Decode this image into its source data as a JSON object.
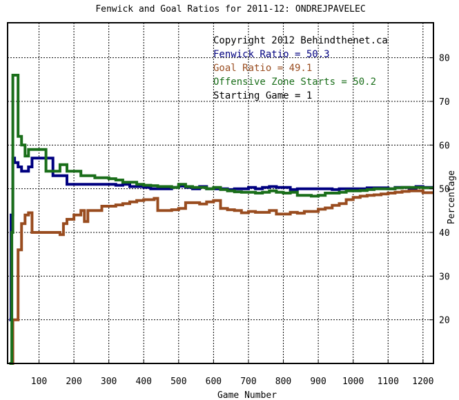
{
  "chart_data": {
    "type": "line",
    "title": "Fenwick and Goal Ratios for 2011-12: ONDREJPAVELEC",
    "xlabel": "Game Number",
    "ylabel": "Percentage",
    "xlim": [
      10,
      1230
    ],
    "ylim": [
      10,
      88
    ],
    "x_ticks": [
      100,
      200,
      300,
      400,
      500,
      600,
      700,
      800,
      900,
      1000,
      1100,
      1200
    ],
    "y_ticks": [
      20,
      30,
      40,
      50,
      60,
      70,
      80
    ],
    "grid": true,
    "legend_position": "top-right",
    "annotations": [
      {
        "text": "Copyright 2012 Behindthenet.ca",
        "color": "#000000"
      },
      {
        "text": "Fenwick Ratio = 50.3",
        "color": "#000080"
      },
      {
        "text": "Goal Ratio = 49.1",
        "color": "#994C1F"
      },
      {
        "text": "Offensive Zone Starts = 50.2",
        "color": "#1A6E1A"
      },
      {
        "text": "Starting Game = 1",
        "color": "#000000"
      }
    ],
    "series": [
      {
        "color": "#000080",
        "x": [
          15,
          20,
          25,
          30,
          40,
          50,
          60,
          70,
          80,
          90,
          100,
          120,
          140,
          160,
          180,
          200,
          220,
          240,
          260,
          280,
          300,
          320,
          340,
          360,
          380,
          400,
          420,
          440,
          460,
          480,
          500,
          520,
          540,
          560,
          580,
          600,
          620,
          640,
          660,
          680,
          700,
          720,
          740,
          760,
          780,
          800,
          820,
          840,
          860,
          880,
          900,
          920,
          940,
          960,
          980,
          1000,
          1020,
          1040,
          1060,
          1080,
          1100,
          1120,
          1140,
          1160,
          1180,
          1200,
          1230
        ],
        "y": [
          20,
          44,
          57,
          56,
          55,
          54,
          54,
          55,
          57,
          57,
          57,
          57,
          53,
          53,
          51,
          51,
          51,
          51,
          51,
          51,
          51,
          50.8,
          51,
          50.5,
          50.5,
          50.3,
          50,
          50,
          50,
          50.3,
          50.6,
          50.3,
          50,
          50.5,
          50,
          50,
          50,
          49.8,
          50,
          50,
          50.3,
          50,
          50.3,
          50.5,
          50.3,
          50.3,
          49.8,
          50,
          50,
          50,
          50,
          50,
          49.8,
          50,
          50,
          50,
          50,
          50.2,
          50.2,
          50.2,
          50,
          50.3,
          50.3,
          50,
          50.5,
          50.3,
          50.3
        ]
      },
      {
        "color": "#994C1F",
        "x": [
          15,
          22,
          25,
          30,
          40,
          45,
          50,
          60,
          70,
          80,
          90,
          100,
          120,
          140,
          160,
          170,
          180,
          190,
          200,
          220,
          230,
          240,
          260,
          280,
          300,
          320,
          340,
          360,
          380,
          400,
          420,
          430,
          440,
          460,
          480,
          500,
          520,
          540,
          560,
          580,
          600,
          620,
          640,
          660,
          680,
          700,
          720,
          740,
          760,
          780,
          800,
          820,
          840,
          860,
          880,
          900,
          920,
          940,
          960,
          980,
          1000,
          1020,
          1040,
          1060,
          1080,
          1100,
          1120,
          1140,
          1160,
          1180,
          1200,
          1230
        ],
        "y": [
          10,
          10,
          20,
          20,
          36,
          36,
          42,
          44,
          44.5,
          40,
          40,
          40,
          40,
          40,
          39.5,
          42,
          43,
          43,
          44,
          45,
          42.5,
          45,
          45,
          46,
          46,
          46.3,
          46.6,
          47,
          47.3,
          47.5,
          47.5,
          47.8,
          45,
          45,
          45.2,
          45.5,
          46.8,
          46.8,
          46.5,
          47,
          47.3,
          45.5,
          45.2,
          45,
          44.5,
          44.8,
          44.6,
          44.6,
          45,
          44.2,
          44.2,
          44.6,
          44.4,
          44.8,
          44.8,
          45.3,
          45.6,
          46.2,
          46.6,
          47.5,
          48,
          48.3,
          48.5,
          48.6,
          48.8,
          49,
          49.2,
          49.4,
          49.5,
          49.5,
          49.1,
          49.1
        ]
      },
      {
        "color": "#1A6E1A",
        "x": [
          15,
          20,
          22,
          25,
          30,
          40,
          45,
          50,
          60,
          70,
          80,
          100,
          120,
          140,
          160,
          180,
          200,
          220,
          240,
          260,
          280,
          300,
          320,
          340,
          360,
          380,
          400,
          420,
          440,
          460,
          480,
          500,
          520,
          540,
          560,
          580,
          600,
          620,
          640,
          660,
          680,
          700,
          720,
          740,
          760,
          780,
          800,
          820,
          840,
          860,
          880,
          900,
          920,
          940,
          960,
          980,
          1000,
          1020,
          1040,
          1060,
          1080,
          1100,
          1120,
          1140,
          1160,
          1180,
          1200,
          1230
        ],
        "y": [
          10,
          10,
          40,
          76,
          76,
          62,
          62,
          60,
          57.5,
          59,
          59,
          59,
          54,
          54,
          55.5,
          54,
          54,
          53,
          53,
          52.5,
          52.5,
          52.3,
          52,
          51.5,
          51.5,
          51,
          50.8,
          50.7,
          50.5,
          50.5,
          50.3,
          51,
          50.5,
          50.3,
          50.3,
          50,
          50.3,
          49.8,
          49.5,
          49.3,
          49.2,
          49.2,
          49,
          49.2,
          49.5,
          49.2,
          49,
          49.2,
          48.5,
          48.5,
          48.3,
          48.5,
          49,
          49,
          49.2,
          49.5,
          49.5,
          49.6,
          49.8,
          50,
          50,
          50,
          50.2,
          50.3,
          50.3,
          50.3,
          50.2,
          50.2
        ]
      }
    ]
  }
}
